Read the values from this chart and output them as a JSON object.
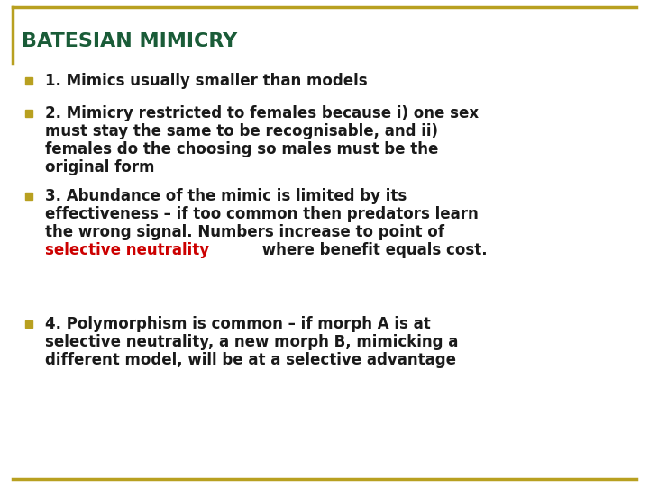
{
  "title": "BATESIAN MIMICRY",
  "title_color": "#1a5c38",
  "title_fontsize": 16,
  "background_color": "#ffffff",
  "border_color": "#b8a020",
  "bullet_square_color": "#b8a020",
  "body_color": "#1a1a1a",
  "highlight_color": "#cc0000",
  "font_family": "DejaVu Sans",
  "font_size": 12,
  "bullets": [
    {
      "lines": [
        "1. Mimics usually smaller than models"
      ],
      "highlight_line": -1,
      "highlight_word": ""
    },
    {
      "lines": [
        "2. Mimicry restricted to females because i) one sex",
        "must stay the same to be recognisable, and ii)",
        "females do the choosing so males must be the",
        "original form"
      ],
      "highlight_line": -1,
      "highlight_word": ""
    },
    {
      "lines": [
        "3. Abundance of the mimic is limited by its",
        "effectiveness – if too common then predators learn",
        "the wrong signal. Numbers increase to point of",
        "selective neutrality where benefit equals cost."
      ],
      "highlight_line": 3,
      "highlight_word": "selective neutrality"
    },
    {
      "lines": [
        "4. Polymorphism is common – if morph A is at",
        "selective neutrality, a new morph B, mimicking a",
        "different model, will be at a selective advantage"
      ],
      "highlight_line": -1,
      "highlight_word": ""
    }
  ]
}
